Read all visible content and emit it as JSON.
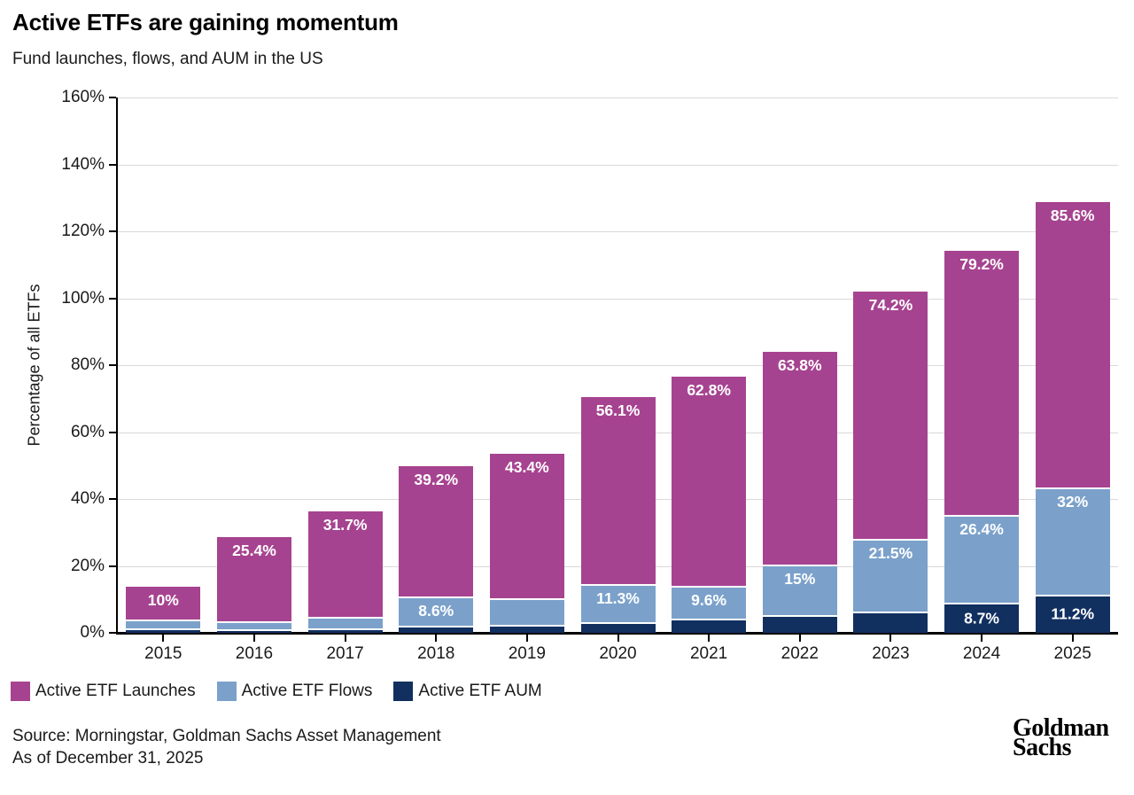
{
  "header": {
    "title": "Active ETFs are gaining momentum",
    "subtitle": "Fund launches, flows, and AUM in the US"
  },
  "chart_data": {
    "type": "bar",
    "stacked": true,
    "title": "Active ETFs are gaining momentum",
    "subtitle": "Fund launches, flows, and AUM in the US",
    "xlabel": "",
    "ylabel": "Percentage of all ETFs",
    "ylim": [
      0,
      160
    ],
    "ytick_step": 20,
    "ytick_labels": [
      "0%",
      "20%",
      "40%",
      "60%",
      "80%",
      "100%",
      "120%",
      "140%",
      "160%"
    ],
    "grid": "horizontal",
    "legend_position": "bottom-left",
    "categories": [
      "2015",
      "2016",
      "2017",
      "2018",
      "2019",
      "2020",
      "2021",
      "2022",
      "2023",
      "2024",
      "2025"
    ],
    "series": [
      {
        "name": "Active ETF Launches",
        "color": "#a64390",
        "values": [
          10,
          25.4,
          31.7,
          39.2,
          43.4,
          56.1,
          62.8,
          63.8,
          74.2,
          79.2,
          85.6
        ],
        "labels": [
          "10%",
          "25.4%",
          "31.7%",
          "39.2%",
          "43.4%",
          "56.1%",
          "62.8%",
          "63.8%",
          "74.2%",
          "79.2%",
          "85.6%"
        ]
      },
      {
        "name": "Active ETF Flows",
        "color": "#7ba1cb",
        "values": [
          2.7,
          2.3,
          3.5,
          8.6,
          7.8,
          11.3,
          9.6,
          15,
          21.5,
          26.4,
          32
        ],
        "labels": [
          "",
          "",
          "",
          "8.6%",
          "",
          "11.3%",
          "9.6%",
          "15%",
          "21.5%",
          "26.4%",
          "32%"
        ]
      },
      {
        "name": "Active ETF AUM",
        "color": "#113060",
        "values": [
          1.0,
          0.9,
          1.1,
          1.9,
          2.2,
          3.0,
          4.1,
          5.1,
          6.2,
          8.7,
          11.2
        ],
        "labels": [
          "",
          "",
          "",
          "",
          "",
          "",
          "",
          "",
          "",
          "8.7%",
          "11.2%"
        ]
      }
    ],
    "colors": {
      "grid": "#d9d9d9",
      "axis": "#000000",
      "bar_label": "#ffffff"
    }
  },
  "footer": {
    "source_line1": "Source: Morningstar, Goldman Sachs Asset Management",
    "source_line2": "As of December 31, 2025",
    "logo_line1": "Goldman",
    "logo_line2": "Sachs"
  }
}
